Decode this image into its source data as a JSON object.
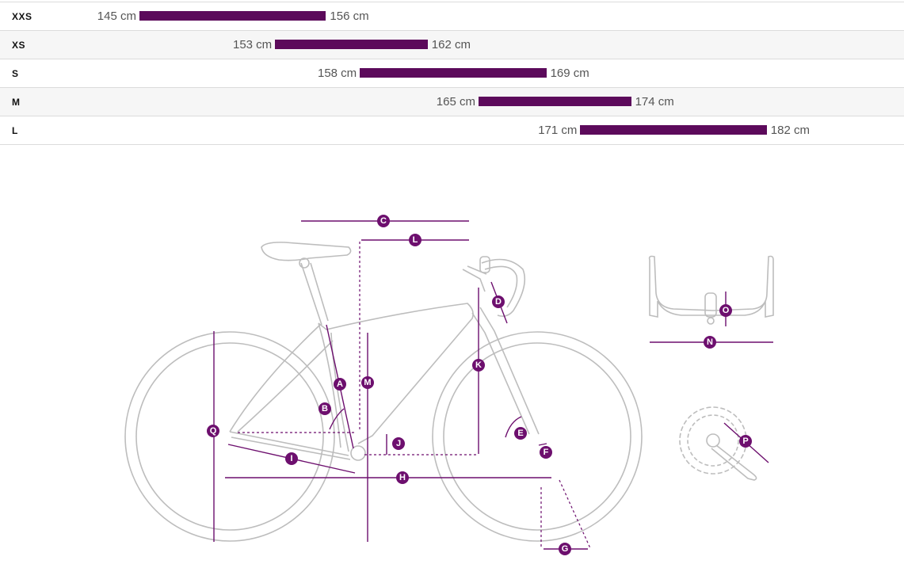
{
  "size_chart": {
    "rows": [
      {
        "size": "XXS",
        "min": "145 cm",
        "max": "156 cm",
        "min_cm": 145,
        "max_cm": 156
      },
      {
        "size": "XS",
        "min": "153 cm",
        "max": "162 cm",
        "min_cm": 153,
        "max_cm": 162
      },
      {
        "size": "S",
        "min": "158 cm",
        "max": "169 cm",
        "min_cm": 158,
        "max_cm": 169
      },
      {
        "size": "M",
        "min": "165 cm",
        "max": "174 cm",
        "min_cm": 165,
        "max_cm": 174
      },
      {
        "size": "L",
        "min": "171 cm",
        "max": "182 cm",
        "min_cm": 171,
        "max_cm": 182
      }
    ],
    "bar_color": "#5c0a5b"
  },
  "geometry": {
    "accent_color": "#6d0f6e",
    "markers": {
      "A": "A",
      "B": "B",
      "C": "C",
      "D": "D",
      "E": "E",
      "F": "F",
      "G": "G",
      "H": "H",
      "I": "I",
      "J": "J",
      "K": "K",
      "L": "L",
      "M": "M",
      "N": "N",
      "O": "O",
      "P": "P",
      "Q": "Q"
    }
  }
}
